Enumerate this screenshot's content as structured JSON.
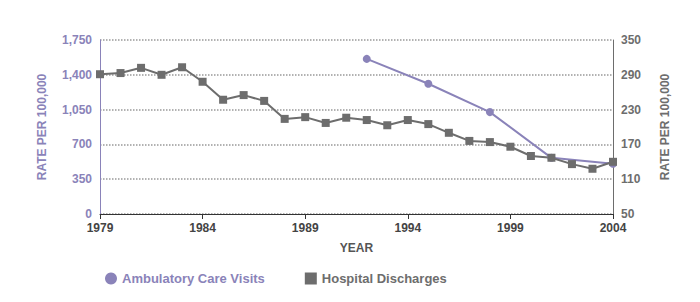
{
  "chart_data": {
    "type": "line",
    "x_label": "YEAR",
    "y_label": "RATE PER 100,000",
    "y2_label": "RATE PER 100,000",
    "xlim": [
      1979,
      2004
    ],
    "xticks": [
      1979,
      1984,
      1989,
      1994,
      1999,
      2004
    ],
    "ylim": [
      0,
      1750
    ],
    "yticks": [
      0,
      350,
      700,
      {
        "value": 1050,
        "label": "1,050"
      },
      {
        "value": 1400,
        "label": "1,400"
      },
      {
        "value": 1750,
        "label": "1,750"
      }
    ],
    "y2lim": [
      50,
      350
    ],
    "y2ticks": [
      50,
      110,
      170,
      230,
      290,
      350
    ],
    "grid": true,
    "legend": "bottom",
    "series": [
      {
        "name": "Ambulatory Care Visits",
        "color": "#8a83b9",
        "marker": "circle",
        "axis": "y",
        "x": [
          1992,
          1995,
          1998,
          2001,
          2004
        ],
        "values": [
          1560,
          1310,
          1025,
          565,
          505
        ]
      },
      {
        "name": "Hospital Discharges",
        "color": "#6d6d6d",
        "marker": "square",
        "axis": "y2",
        "x": [
          1979,
          1980,
          1981,
          1982,
          1983,
          1984,
          1985,
          1986,
          1987,
          1988,
          1989,
          1990,
          1991,
          1992,
          1993,
          1994,
          1995,
          1996,
          1997,
          1998,
          1999,
          2000,
          2001,
          2002,
          2003,
          2004
        ],
        "values": [
          291,
          293,
          302,
          290,
          303,
          278,
          247,
          255,
          245,
          214,
          217,
          207,
          216,
          212,
          203,
          212,
          205,
          190,
          176,
          174,
          166,
          150,
          147,
          136,
          128,
          140
        ]
      }
    ]
  }
}
